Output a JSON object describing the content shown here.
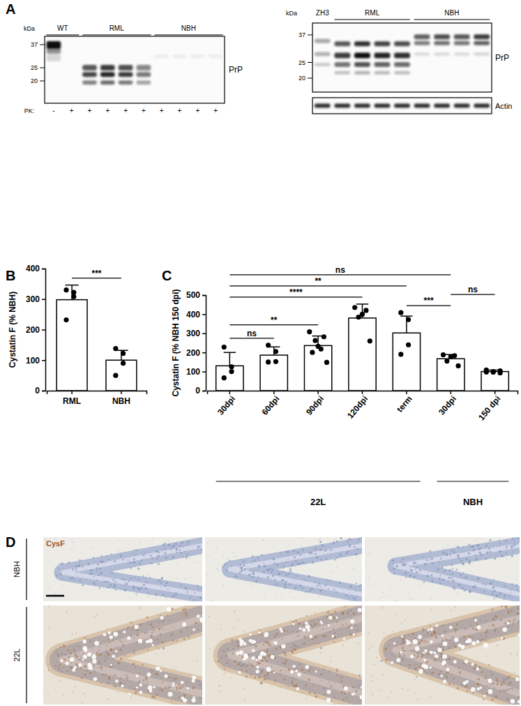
{
  "blots": [
    {
      "panel": "A",
      "kda_label": "kDa",
      "markers": [
        37,
        25,
        20
      ],
      "lanes": [
        "WT",
        "WT",
        "RML",
        "RML",
        "RML",
        "RML",
        "NBH",
        "NBH",
        "NBH",
        "NBH"
      ],
      "treatment_label": "PK:",
      "treatment": [
        "-",
        "+",
        "+",
        "+",
        "+",
        "+",
        "+",
        "+",
        "+",
        "+"
      ],
      "target": "PrP"
    },
    {
      "kda_label": "kDa",
      "markers": [
        37,
        25,
        20
      ],
      "lanes": [
        "ZH3",
        "RML",
        "RML",
        "RML",
        "RML",
        "NBH",
        "NBH",
        "NBH",
        "NBH"
      ],
      "target": "PrP",
      "loading_control": "Actin"
    }
  ],
  "chart_data": [
    {
      "type": "bar",
      "panel": "B",
      "ylabel": "Cystatin F (% NBH)",
      "categories": [
        "RML",
        "NBH"
      ],
      "values": [
        298,
        100
      ],
      "errors": [
        48,
        32
      ],
      "points": [
        [
          330,
          322,
          308,
          232
        ],
        [
          138,
          122,
          90,
          50
        ]
      ],
      "color": "#ffffff",
      "ylim": [
        0,
        400
      ],
      "yticks": [
        0,
        100,
        200,
        300,
        400
      ],
      "annotations": [
        {
          "from": 0,
          "to": 1,
          "label": "***"
        }
      ]
    },
    {
      "type": "bar",
      "panel": "C",
      "ylabel": "Cystatin F (% NBH 150 dpi)",
      "categories": [
        "30dpi",
        "60dpi",
        "90dpi",
        "120dpi",
        "term",
        "30dpi",
        "150 dpi"
      ],
      "values": [
        130,
        186,
        236,
        380,
        302,
        167,
        100
      ],
      "errors": [
        70,
        43,
        50,
        73,
        88,
        22,
        8
      ],
      "points": [
        [
          228,
          125,
          100,
          67
        ],
        [
          238,
          205,
          152,
          150
        ],
        [
          308,
          282,
          262,
          232,
          218,
          200,
          148
        ],
        [
          435,
          420,
          400,
          385,
          260
        ],
        [
          408,
          372,
          240,
          190
        ],
        [
          188,
          183,
          178,
          155,
          130
        ],
        [
          108,
          104,
          100,
          97,
          93,
          98
        ]
      ],
      "color": "#ffffff",
      "ylim": [
        0,
        500
      ],
      "yticks": [
        0,
        100,
        200,
        300,
        400,
        500
      ],
      "groups": [
        {
          "label": "22L",
          "from": 0,
          "to": 4
        },
        {
          "label": "NBH",
          "from": 5,
          "to": 6
        }
      ],
      "annotations": [
        {
          "from": 0,
          "to": 1,
          "label": "ns"
        },
        {
          "from": 0,
          "to": 2,
          "label": "**"
        },
        {
          "from": 0,
          "to": 3,
          "label": "****"
        },
        {
          "from": 0,
          "to": 4,
          "label": "**"
        },
        {
          "from": 0,
          "to": 5,
          "label": "ns"
        },
        {
          "from": 4,
          "to": 5,
          "label": "***"
        },
        {
          "from": 5,
          "to": 6,
          "label": "ns"
        }
      ]
    }
  ],
  "histology": {
    "panel": "D",
    "stain": "CysF",
    "rows": [
      "NBH",
      "22L"
    ]
  }
}
